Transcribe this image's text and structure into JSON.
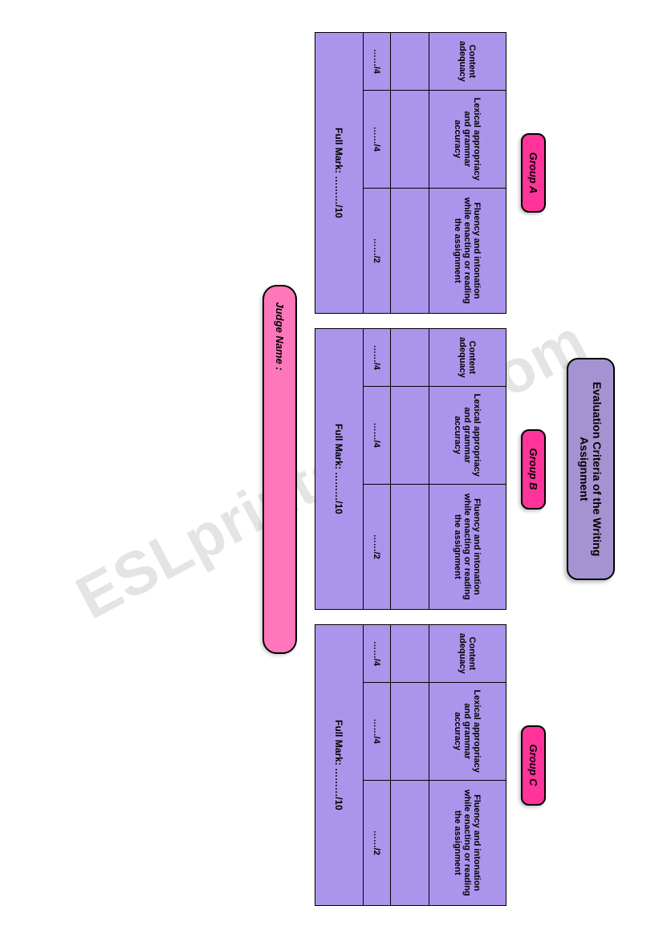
{
  "title": {
    "line1": "Evaluation Criteria of the Writing",
    "line2": "Assignment"
  },
  "criteria": {
    "c1": "Content adequacy",
    "c2": "Lexical appropriacy and grammar accuracy",
    "c3": "Fluency and intonation while enacting or reading the assignment"
  },
  "scores": {
    "s1": "……/4",
    "s2": "……/4",
    "s3": "……/2"
  },
  "fullmark": "Full Mark: ………/10",
  "groups": {
    "a": "Group  A",
    "b": "Group  B",
    "c": "Group  C"
  },
  "judge": "Judge Name :",
  "watermark": "ESLprintables.com"
}
